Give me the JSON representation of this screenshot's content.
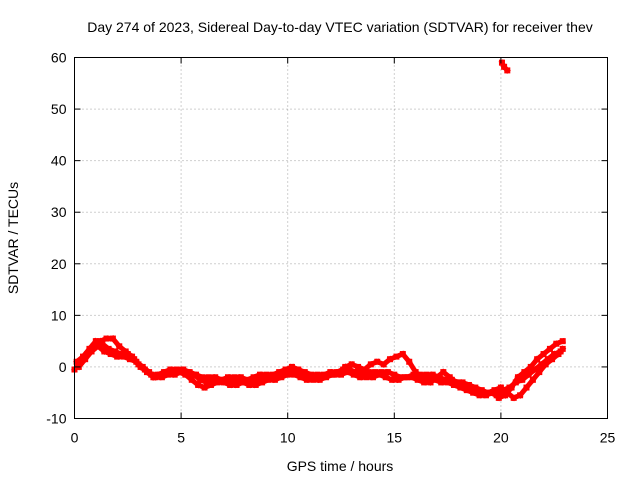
{
  "chart_data": {
    "type": "scatter",
    "title": "Day 274 of 2023, Sidereal Day-to-day VTEC variation (SDTVAR) for receiver thev",
    "xlabel": "GPS time / hours",
    "ylabel": "SDTVAR / TECUs",
    "xlim": [
      0,
      25
    ],
    "ylim": [
      -10,
      60
    ],
    "xticks": [
      0,
      5,
      10,
      15,
      20,
      25
    ],
    "yticks": [
      -10,
      0,
      10,
      20,
      30,
      40,
      50,
      60
    ],
    "grid": true,
    "series": [
      {
        "name": "SDTVAR",
        "color": "#ff0000",
        "tracks": [
          [
            [
              0.0,
              -0.5
            ],
            [
              0.3,
              1.0
            ],
            [
              0.6,
              2.5
            ],
            [
              0.9,
              4.0
            ],
            [
              1.2,
              5.0
            ],
            [
              1.5,
              5.5
            ],
            [
              1.8,
              5.5
            ],
            [
              2.1,
              4.0
            ],
            [
              2.4,
              3.0
            ],
            [
              2.7,
              2.0
            ],
            [
              3.0,
              0.5
            ],
            [
              3.3,
              -0.5
            ],
            [
              3.6,
              -1.5
            ],
            [
              3.9,
              -1.5
            ],
            [
              4.2,
              -1.0
            ],
            [
              4.5,
              -0.5
            ],
            [
              4.8,
              -0.5
            ],
            [
              5.1,
              -0.5
            ],
            [
              5.4,
              -1.0
            ],
            [
              5.7,
              -1.5
            ],
            [
              6.0,
              -2.0
            ],
            [
              6.3,
              -2.0
            ],
            [
              6.6,
              -2.0
            ],
            [
              6.9,
              -2.5
            ],
            [
              7.2,
              -2.0
            ],
            [
              7.5,
              -2.0
            ],
            [
              7.8,
              -2.0
            ],
            [
              8.1,
              -2.5
            ],
            [
              8.4,
              -2.0
            ],
            [
              8.7,
              -1.5
            ],
            [
              9.0,
              -1.5
            ],
            [
              9.3,
              -1.5
            ],
            [
              9.6,
              -1.0
            ],
            [
              9.9,
              -0.5
            ],
            [
              10.2,
              0.0
            ],
            [
              10.5,
              -0.5
            ],
            [
              10.8,
              -1.0
            ],
            [
              11.1,
              -1.5
            ],
            [
              11.4,
              -1.5
            ],
            [
              11.7,
              -1.5
            ],
            [
              12.0,
              -1.0
            ],
            [
              12.3,
              -1.0
            ],
            [
              12.6,
              -0.5
            ],
            [
              12.9,
              -0.5
            ],
            [
              13.2,
              -1.0
            ],
            [
              13.5,
              -1.0
            ],
            [
              13.8,
              -1.0
            ],
            [
              14.1,
              -1.0
            ],
            [
              14.4,
              -1.0
            ],
            [
              14.7,
              -1.0
            ],
            [
              15.0,
              -1.5
            ],
            [
              15.3,
              -2.0
            ],
            [
              15.6,
              -2.0
            ],
            [
              15.9,
              -1.5
            ],
            [
              16.2,
              -1.5
            ],
            [
              16.5,
              -1.5
            ],
            [
              16.8,
              -1.5
            ],
            [
              17.1,
              -2.0
            ],
            [
              17.4,
              -2.5
            ],
            [
              17.7,
              -2.5
            ],
            [
              18.0,
              -3.0
            ],
            [
              18.3,
              -3.5
            ],
            [
              18.6,
              -4.0
            ],
            [
              18.9,
              -4.5
            ],
            [
              19.2,
              -5.0
            ],
            [
              19.5,
              -5.0
            ],
            [
              19.8,
              -5.5
            ],
            [
              20.1,
              -4.5
            ],
            [
              20.4,
              -4.0
            ],
            [
              20.7,
              -3.0
            ],
            [
              21.0,
              -2.5
            ],
            [
              21.3,
              -1.5
            ],
            [
              21.6,
              -0.5
            ],
            [
              21.9,
              0.5
            ],
            [
              22.2,
              1.5
            ],
            [
              22.5,
              2.5
            ],
            [
              22.8,
              3.0
            ]
          ],
          [
            [
              0.1,
              1.0
            ],
            [
              0.4,
              2.0
            ],
            [
              0.7,
              3.5
            ],
            [
              1.0,
              5.0
            ],
            [
              1.3,
              4.5
            ],
            [
              1.6,
              3.5
            ],
            [
              1.9,
              3.0
            ],
            [
              2.2,
              2.5
            ],
            [
              2.5,
              2.5
            ],
            [
              2.8,
              1.5
            ],
            [
              3.1,
              0.0
            ],
            [
              3.4,
              -1.0
            ],
            [
              3.7,
              -2.0
            ],
            [
              4.0,
              -1.5
            ],
            [
              4.3,
              -1.0
            ],
            [
              4.6,
              -1.0
            ],
            [
              4.9,
              -1.0
            ],
            [
              5.2,
              -1.5
            ],
            [
              5.5,
              -2.5
            ],
            [
              5.8,
              -3.5
            ],
            [
              6.1,
              -4.0
            ],
            [
              6.4,
              -3.5
            ],
            [
              6.7,
              -3.0
            ],
            [
              7.0,
              -3.0
            ],
            [
              7.3,
              -3.5
            ],
            [
              7.6,
              -3.5
            ],
            [
              7.9,
              -3.0
            ],
            [
              8.2,
              -3.5
            ],
            [
              8.5,
              -3.5
            ],
            [
              8.8,
              -3.0
            ],
            [
              9.1,
              -2.5
            ],
            [
              9.4,
              -2.5
            ],
            [
              9.7,
              -2.0
            ],
            [
              10.0,
              -1.5
            ],
            [
              10.3,
              -1.5
            ],
            [
              10.6,
              -2.0
            ],
            [
              10.9,
              -2.5
            ],
            [
              11.2,
              -2.5
            ],
            [
              11.5,
              -2.5
            ],
            [
              11.8,
              -2.0
            ],
            [
              12.1,
              -1.5
            ],
            [
              12.4,
              -1.0
            ],
            [
              12.7,
              0.0
            ],
            [
              13.0,
              0.5
            ],
            [
              13.3,
              0.0
            ],
            [
              13.6,
              -0.5
            ],
            [
              13.9,
              0.5
            ],
            [
              14.2,
              1.0
            ],
            [
              14.5,
              0.5
            ],
            [
              14.8,
              1.5
            ],
            [
              15.1,
              2.0
            ],
            [
              15.4,
              2.5
            ],
            [
              15.7,
              1.0
            ],
            [
              16.0,
              -1.0
            ],
            [
              16.3,
              -2.0
            ],
            [
              16.6,
              -2.5
            ],
            [
              16.9,
              -2.5
            ],
            [
              17.2,
              -3.0
            ],
            [
              17.5,
              -3.0
            ],
            [
              17.8,
              -3.5
            ],
            [
              18.1,
              -4.0
            ],
            [
              18.4,
              -4.5
            ],
            [
              18.7,
              -5.0
            ],
            [
              19.0,
              -5.5
            ],
            [
              19.3,
              -5.5
            ],
            [
              19.6,
              -5.0
            ],
            [
              19.9,
              -6.0
            ],
            [
              20.2,
              -5.5
            ],
            [
              20.5,
              -4.0
            ],
            [
              20.8,
              -2.0
            ],
            [
              21.1,
              -1.0
            ],
            [
              21.4,
              0.0
            ],
            [
              21.7,
              1.5
            ],
            [
              22.0,
              2.5
            ],
            [
              22.3,
              3.5
            ],
            [
              22.6,
              4.5
            ],
            [
              22.9,
              5.0
            ]
          ],
          [
            [
              0.2,
              0.0
            ],
            [
              0.5,
              1.5
            ],
            [
              0.8,
              3.0
            ],
            [
              1.1,
              4.0
            ],
            [
              1.4,
              3.0
            ],
            [
              1.7,
              2.5
            ],
            [
              2.0,
              2.0
            ],
            [
              2.3,
              2.0
            ],
            [
              2.6,
              1.5
            ],
            [
              2.9,
              1.0
            ],
            [
              3.2,
              0.0
            ],
            [
              3.5,
              -1.0
            ],
            [
              3.8,
              -2.0
            ],
            [
              4.1,
              -2.0
            ],
            [
              4.4,
              -1.5
            ],
            [
              4.7,
              -1.5
            ],
            [
              5.0,
              -1.0
            ],
            [
              5.3,
              -1.0
            ],
            [
              5.6,
              -1.5
            ],
            [
              5.9,
              -2.5
            ],
            [
              6.2,
              -3.0
            ],
            [
              6.5,
              -2.5
            ],
            [
              6.8,
              -2.5
            ],
            [
              7.1,
              -3.0
            ],
            [
              7.4,
              -3.0
            ],
            [
              7.7,
              -2.5
            ],
            [
              8.0,
              -3.0
            ],
            [
              8.3,
              -3.0
            ],
            [
              8.6,
              -2.5
            ],
            [
              8.9,
              -2.0
            ],
            [
              9.2,
              -2.0
            ],
            [
              9.5,
              -2.0
            ],
            [
              9.8,
              -1.5
            ],
            [
              10.1,
              -1.0
            ],
            [
              10.4,
              -1.0
            ],
            [
              10.7,
              -1.5
            ],
            [
              11.0,
              -2.0
            ],
            [
              11.3,
              -2.0
            ],
            [
              11.6,
              -2.0
            ],
            [
              11.9,
              -1.5
            ],
            [
              12.2,
              -1.5
            ],
            [
              12.5,
              -1.5
            ],
            [
              12.8,
              -1.0
            ],
            [
              13.1,
              -1.5
            ],
            [
              13.4,
              -2.0
            ],
            [
              13.7,
              -2.0
            ],
            [
              14.0,
              -2.0
            ],
            [
              14.3,
              -1.5
            ],
            [
              14.6,
              -2.0
            ],
            [
              14.9,
              -2.5
            ],
            [
              15.2,
              -2.5
            ],
            [
              15.5,
              -2.0
            ],
            [
              15.8,
              -2.0
            ],
            [
              16.1,
              -2.5
            ],
            [
              16.4,
              -3.0
            ],
            [
              16.7,
              -3.0
            ],
            [
              17.0,
              -2.0
            ],
            [
              17.3,
              -1.0
            ],
            [
              17.6,
              -2.0
            ],
            [
              17.9,
              -3.0
            ],
            [
              18.2,
              -3.0
            ],
            [
              18.5,
              -3.5
            ],
            [
              18.8,
              -4.0
            ],
            [
              19.1,
              -4.5
            ],
            [
              19.4,
              -5.0
            ],
            [
              19.7,
              -4.5
            ],
            [
              20.0,
              -4.0
            ],
            [
              20.3,
              -5.0
            ],
            [
              20.6,
              -6.0
            ],
            [
              20.9,
              -5.5
            ],
            [
              21.2,
              -4.0
            ],
            [
              21.5,
              -2.5
            ],
            [
              21.8,
              -1.0
            ],
            [
              22.1,
              0.5
            ],
            [
              22.4,
              1.5
            ],
            [
              22.7,
              2.5
            ],
            [
              22.9,
              3.5
            ]
          ],
          [
            [
              20.05,
              59.0
            ],
            [
              20.15,
              58.2
            ],
            [
              20.3,
              57.5
            ]
          ]
        ]
      }
    ]
  }
}
